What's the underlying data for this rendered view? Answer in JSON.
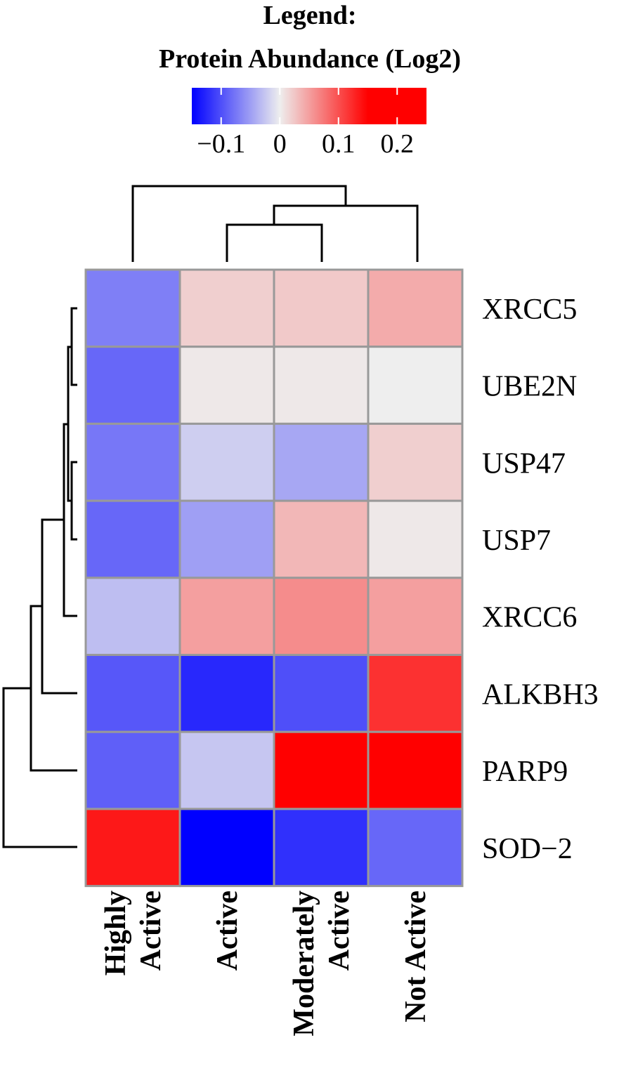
{
  "chart_data": {
    "type": "heatmap",
    "legend": {
      "title_line1": "Legend:",
      "title_line2": "Protein Abundance (Log2)",
      "min": -0.15,
      "max": 0.25,
      "ticks": [
        -0.1,
        0,
        0.1,
        0.2
      ],
      "tick_labels": [
        "−0.1",
        "0",
        "0.1",
        "0.2"
      ],
      "colors": {
        "low": "#0000FF",
        "mid": "#EEEEEE",
        "high": "#FF0000"
      }
    },
    "columns": [
      {
        "label_lines": [
          "Highly",
          "Active"
        ]
      },
      {
        "label_lines": [
          "Active"
        ]
      },
      {
        "label_lines": [
          "Moderately",
          "Active"
        ]
      },
      {
        "label_lines": [
          "Not Active"
        ]
      }
    ],
    "rows": [
      "XRCC5",
      "UBE2N",
      "USP47",
      "USP7",
      "XRCC6",
      "ALKBH3",
      "PARP9",
      "SOD−2"
    ],
    "values": [
      [
        -0.07,
        0.025,
        0.03,
        0.055
      ],
      [
        -0.085,
        0.005,
        0.005,
        0.0
      ],
      [
        -0.075,
        -0.02,
        -0.045,
        0.025
      ],
      [
        -0.085,
        -0.05,
        0.045,
        0.005
      ],
      [
        -0.03,
        0.065,
        0.08,
        0.065
      ],
      [
        -0.095,
        -0.125,
        -0.1,
        0.155
      ],
      [
        -0.09,
        -0.025,
        0.25,
        0.25
      ],
      [
        0.175,
        -0.15,
        -0.12,
        -0.085
      ]
    ],
    "grid": true,
    "legend_position": "top"
  }
}
